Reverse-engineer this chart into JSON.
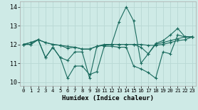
{
  "title": "",
  "xlabel": "Humidex (Indice chaleur)",
  "xlim": [
    -0.5,
    23.5
  ],
  "ylim": [
    9.8,
    14.3
  ],
  "yticks": [
    10,
    11,
    12,
    13,
    14
  ],
  "xticks": [
    0,
    1,
    2,
    3,
    4,
    5,
    6,
    7,
    8,
    9,
    10,
    11,
    12,
    13,
    14,
    15,
    16,
    17,
    18,
    19,
    20,
    21,
    22,
    23
  ],
  "bg_color": "#ceeae6",
  "line_color": "#1a6b5e",
  "grid_color": "#b8d8d4",
  "series": [
    [
      12.0,
      12.1,
      12.25,
      11.3,
      11.85,
      11.3,
      10.2,
      10.85,
      10.85,
      10.4,
      10.55,
      11.9,
      11.9,
      11.85,
      11.85,
      10.85,
      10.7,
      10.5,
      10.2,
      11.6,
      11.5,
      12.5,
      12.4,
      12.4
    ],
    [
      12.0,
      12.0,
      12.25,
      12.1,
      12.0,
      11.95,
      11.9,
      11.85,
      11.75,
      11.75,
      11.9,
      11.95,
      12.0,
      12.0,
      12.0,
      12.0,
      12.0,
      11.95,
      11.95,
      12.0,
      12.1,
      12.2,
      12.25,
      12.4
    ],
    [
      12.0,
      12.0,
      12.25,
      12.1,
      12.0,
      11.95,
      11.8,
      11.85,
      11.75,
      11.75,
      11.9,
      11.95,
      12.0,
      12.0,
      12.0,
      12.0,
      11.85,
      11.5,
      12.0,
      12.1,
      12.2,
      12.3,
      12.4,
      12.4
    ],
    [
      12.0,
      12.1,
      12.25,
      11.3,
      11.85,
      11.3,
      11.15,
      11.6,
      11.6,
      10.2,
      11.9,
      12.0,
      12.0,
      13.2,
      14.0,
      13.25,
      11.0,
      11.5,
      12.05,
      12.2,
      12.5,
      12.85,
      12.4,
      12.4
    ]
  ]
}
